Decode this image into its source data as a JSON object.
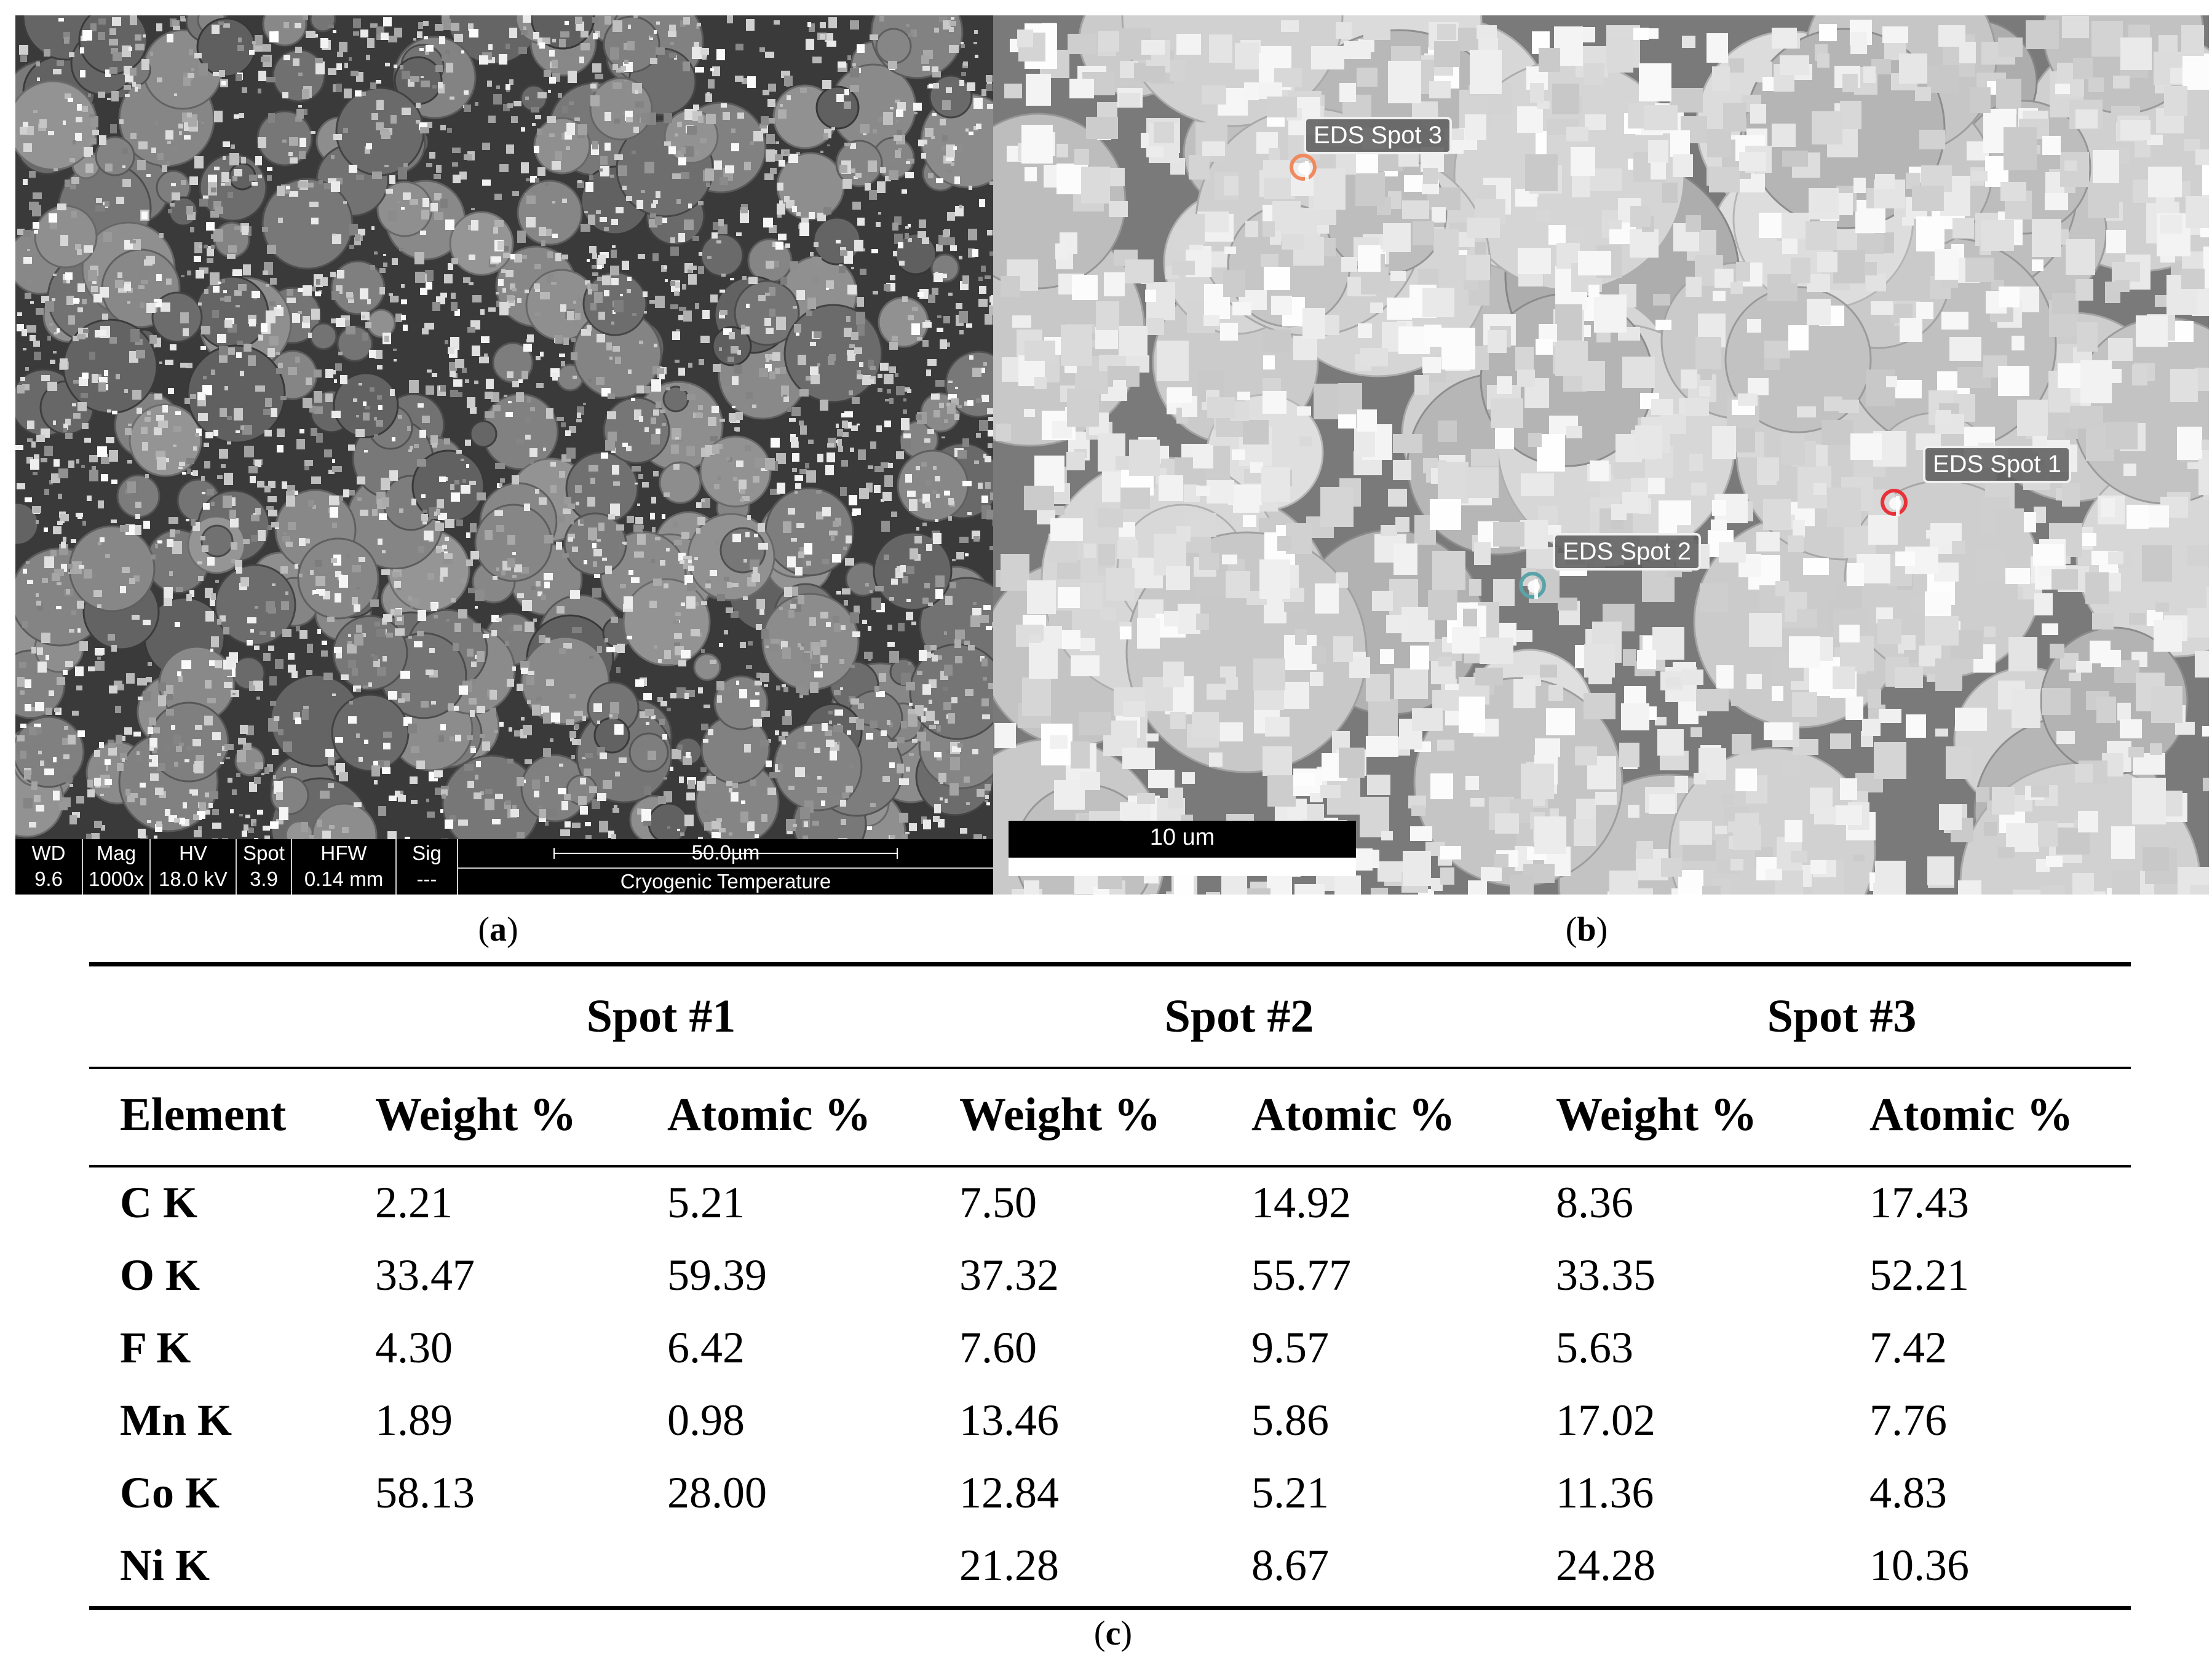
{
  "panel_a": {
    "sem_info": [
      {
        "label": "WD",
        "value": "9.6 mm"
      },
      {
        "label": "Mag",
        "value": "1000x"
      },
      {
        "label": "HV",
        "value": "18.0 kV"
      },
      {
        "label": "Spot",
        "value": "3.9"
      },
      {
        "label": "HFW",
        "value": "0.14 mm"
      },
      {
        "label": "Sig",
        "value": "---"
      }
    ],
    "scale_label": "50.0µm",
    "condition": "Cryogenic Temperature",
    "caption_letter": "a"
  },
  "panel_b": {
    "spots": [
      {
        "label": "EDS Spot 3",
        "color": "#f08a5e"
      },
      {
        "label": "EDS Spot 1",
        "color": "#e8323a"
      },
      {
        "label": "EDS Spot 2",
        "color": "#5aa3a8"
      }
    ],
    "scale_label": "10 um",
    "caption_letter": "b"
  },
  "table": {
    "spot_headers": [
      "Spot #1",
      "Spot #2",
      "Spot #3"
    ],
    "column_headers": [
      "Element",
      "Weight %",
      "Atomic %",
      "Weight %",
      "Atomic %",
      "Weight %",
      "Atomic %"
    ],
    "rows": [
      {
        "element": "C K",
        "values": [
          "2.21",
          "5.21",
          "7.50",
          "14.92",
          "8.36",
          "17.43"
        ]
      },
      {
        "element": "O K",
        "values": [
          "33.47",
          "59.39",
          "37.32",
          "55.77",
          "33.35",
          "52.21"
        ]
      },
      {
        "element": "F K",
        "values": [
          "4.30",
          "6.42",
          "7.60",
          "9.57",
          "5.63",
          "7.42"
        ]
      },
      {
        "element": "Mn K",
        "values": [
          "1.89",
          "0.98",
          "13.46",
          "5.86",
          "17.02",
          "7.76"
        ]
      },
      {
        "element": "Co K",
        "values": [
          "58.13",
          "28.00",
          "12.84",
          "5.21",
          "11.36",
          "4.83"
        ]
      },
      {
        "element": "Ni K",
        "values": [
          "",
          "",
          "21.28",
          "8.67",
          "24.28",
          "10.36"
        ]
      }
    ],
    "caption_letter": "c"
  }
}
